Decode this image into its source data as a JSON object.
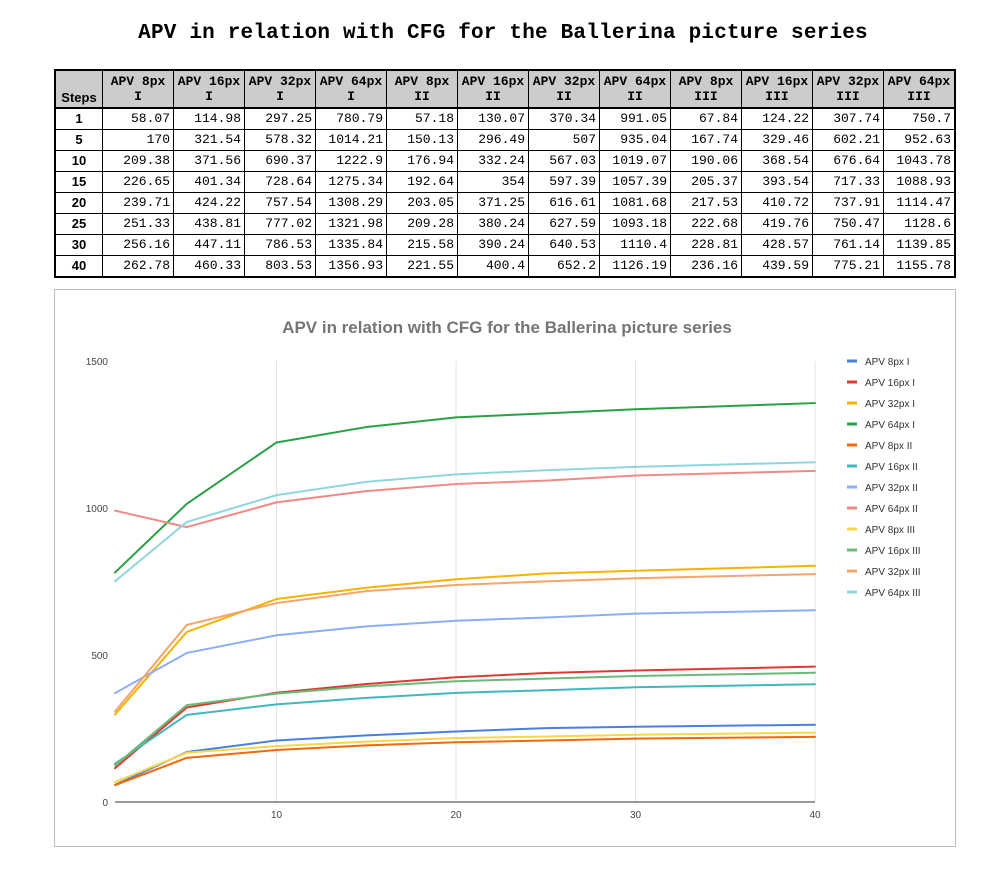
{
  "page_title": "APV in relation with CFG for the Ballerina picture series",
  "table": {
    "steps_header": "Steps",
    "headers": [
      [
        "APV 8px",
        "I"
      ],
      [
        "APV 16px",
        "I"
      ],
      [
        "APV 32px",
        "I"
      ],
      [
        "APV 64px",
        "I"
      ],
      [
        "APV 8px",
        "II"
      ],
      [
        "APV 16px",
        "II"
      ],
      [
        "APV 32px",
        "II"
      ],
      [
        "APV 64px",
        "II"
      ],
      [
        "APV 8px",
        "III"
      ],
      [
        "APV 16px",
        "III"
      ],
      [
        "APV 32px",
        "III"
      ],
      [
        "APV 64px",
        "III"
      ]
    ],
    "rows": [
      {
        "step": "1",
        "values": [
          "58.07",
          "114.98",
          "297.25",
          "780.79",
          "57.18",
          "130.07",
          "370.34",
          "991.05",
          "67.84",
          "124.22",
          "307.74",
          "750.7"
        ]
      },
      {
        "step": "5",
        "values": [
          "170",
          "321.54",
          "578.32",
          "1014.21",
          "150.13",
          "296.49",
          "507",
          "935.04",
          "167.74",
          "329.46",
          "602.21",
          "952.63"
        ]
      },
      {
        "step": "10",
        "values": [
          "209.38",
          "371.56",
          "690.37",
          "1222.9",
          "176.94",
          "332.24",
          "567.03",
          "1019.07",
          "190.06",
          "368.54",
          "676.64",
          "1043.78"
        ]
      },
      {
        "step": "15",
        "values": [
          "226.65",
          "401.34",
          "728.64",
          "1275.34",
          "192.64",
          "354",
          "597.39",
          "1057.39",
          "205.37",
          "393.54",
          "717.33",
          "1088.93"
        ]
      },
      {
        "step": "20",
        "values": [
          "239.71",
          "424.22",
          "757.54",
          "1308.29",
          "203.05",
          "371.25",
          "616.61",
          "1081.68",
          "217.53",
          "410.72",
          "737.91",
          "1114.47"
        ]
      },
      {
        "step": "25",
        "values": [
          "251.33",
          "438.81",
          "777.02",
          "1321.98",
          "209.28",
          "380.24",
          "627.59",
          "1093.18",
          "222.68",
          "419.76",
          "750.47",
          "1128.6"
        ]
      },
      {
        "step": "30",
        "values": [
          "256.16",
          "447.11",
          "786.53",
          "1335.84",
          "215.58",
          "390.24",
          "640.53",
          "1110.4",
          "228.81",
          "428.57",
          "761.14",
          "1139.85"
        ]
      },
      {
        "step": "40",
        "values": [
          "262.78",
          "460.33",
          "803.53",
          "1356.93",
          "221.55",
          "400.4",
          "652.2",
          "1126.19",
          "236.16",
          "439.59",
          "775.21",
          "1155.78"
        ]
      }
    ]
  },
  "chart_data": {
    "type": "line",
    "title": "APV in relation with CFG for the Ballerina picture series",
    "x": [
      1,
      5,
      10,
      15,
      20,
      25,
      30,
      40
    ],
    "xlim": [
      1,
      40
    ],
    "ylim": [
      0,
      1500
    ],
    "x_ticks": [
      10,
      20,
      30,
      40
    ],
    "y_ticks": [
      0,
      500,
      1000,
      1500
    ],
    "grid": "vertical",
    "legend_position": "right",
    "series": [
      {
        "name": "APV 8px I",
        "color": "#4a7fe0",
        "values": [
          58.07,
          170,
          209.38,
          226.65,
          239.71,
          251.33,
          256.16,
          262.78
        ]
      },
      {
        "name": "APV 16px I",
        "color": "#dc3b35",
        "values": [
          114.98,
          321.54,
          371.56,
          401.34,
          424.22,
          438.81,
          447.11,
          460.33
        ]
      },
      {
        "name": "APV 32px I",
        "color": "#f4b400",
        "values": [
          297.25,
          578.32,
          690.37,
          728.64,
          757.54,
          777.02,
          786.53,
          803.53
        ]
      },
      {
        "name": "APV 64px I",
        "color": "#28a044",
        "values": [
          780.79,
          1014.21,
          1222.9,
          1275.34,
          1308.29,
          1321.98,
          1335.84,
          1356.93
        ]
      },
      {
        "name": "APV 8px II",
        "color": "#f2690a",
        "values": [
          57.18,
          150.13,
          176.94,
          192.64,
          203.05,
          209.28,
          215.58,
          221.55
        ]
      },
      {
        "name": "APV 16px II",
        "color": "#3fb8bf",
        "values": [
          130.07,
          296.49,
          332.24,
          354,
          371.25,
          380.24,
          390.24,
          400.4
        ]
      },
      {
        "name": "APV 32px II",
        "color": "#8eaef2",
        "values": [
          370.34,
          507,
          567.03,
          597.39,
          616.61,
          627.59,
          640.53,
          652.2
        ]
      },
      {
        "name": "APV 64px II",
        "color": "#ee8b85",
        "values": [
          991.05,
          935.04,
          1019.07,
          1057.39,
          1081.68,
          1093.18,
          1110.4,
          1126.19
        ]
      },
      {
        "name": "APV 8px III",
        "color": "#f8d64a",
        "values": [
          67.84,
          167.74,
          190.06,
          205.37,
          217.53,
          222.68,
          228.81,
          236.16
        ]
      },
      {
        "name": "APV 16px III",
        "color": "#6bbb78",
        "values": [
          124.22,
          329.46,
          368.54,
          393.54,
          410.72,
          419.76,
          428.57,
          439.59
        ]
      },
      {
        "name": "APV 32px III",
        "color": "#f6a469",
        "values": [
          307.74,
          602.21,
          676.64,
          717.33,
          737.91,
          750.47,
          761.14,
          775.21
        ]
      },
      {
        "name": "APV 64px III",
        "color": "#8fd6dc",
        "values": [
          750.7,
          952.63,
          1043.78,
          1088.93,
          1114.47,
          1128.6,
          1139.85,
          1155.78
        ]
      }
    ]
  }
}
